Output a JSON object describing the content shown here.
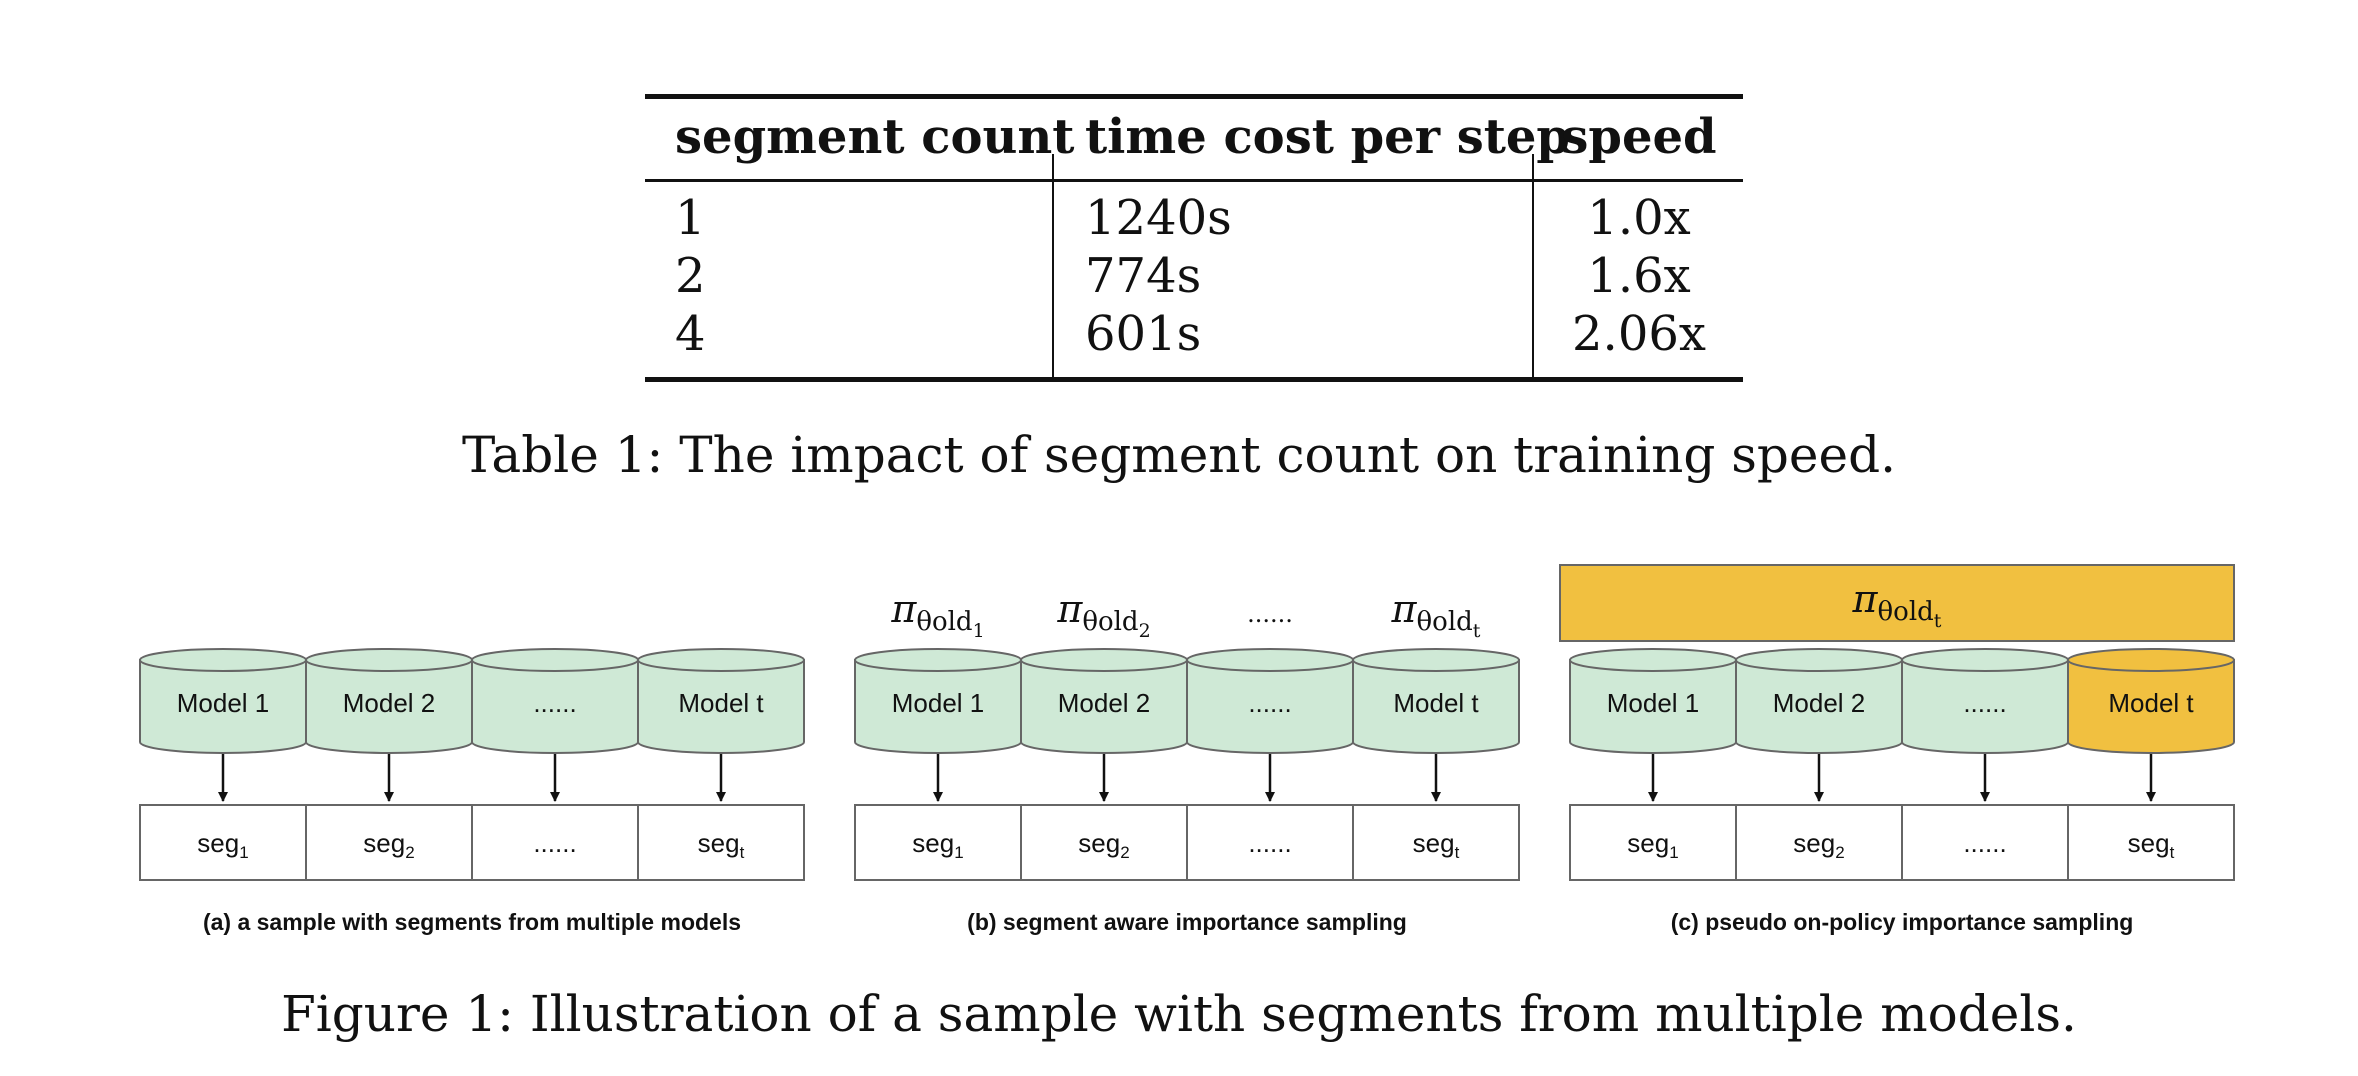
{
  "table": {
    "headers": [
      "segment count",
      "time cost per step",
      "speed"
    ],
    "rows": [
      [
        "1",
        "1240s",
        "1.0x"
      ],
      [
        "2",
        "774s",
        "1.6x"
      ],
      [
        "4",
        "601s",
        "2.06x"
      ]
    ],
    "caption": "Table 1: The impact of segment count on training speed."
  },
  "figure": {
    "caption": "Figure 1: Illustration of a sample with segments from multiple models.",
    "colors": {
      "model_fill": "#cfe9d6",
      "highlight": "#f1c040",
      "stroke": "#666666"
    },
    "panels": [
      {
        "caption": "(a)  a sample with segments from multiple models",
        "models": [
          "Model 1",
          "Model 2",
          "......",
          "Model t"
        ],
        "segments": [
          {
            "base": "seg",
            "sub": "1"
          },
          {
            "base": "seg",
            "sub": "2"
          },
          {
            "base": "......",
            "sub": ""
          },
          {
            "base": "seg",
            "sub": "t"
          }
        ]
      },
      {
        "caption": "(b)  segment aware importance sampling",
        "models": [
          "Model 1",
          "Model 2",
          "......",
          "Model t"
        ],
        "segments": [
          {
            "base": "seg",
            "sub": "1"
          },
          {
            "base": "seg",
            "sub": "2"
          },
          {
            "base": "......",
            "sub": ""
          },
          {
            "base": "seg",
            "sub": "t"
          }
        ],
        "policies": [
          {
            "symbol": "π",
            "sub": "θold",
            "subsub": "1"
          },
          {
            "symbol": "π",
            "sub": "θold",
            "subsub": "2"
          },
          {
            "symbol": "......",
            "sub": "",
            "subsub": ""
          },
          {
            "symbol": "π",
            "sub": "θold",
            "subsub": "t"
          }
        ]
      },
      {
        "caption": "(c)  pseudo on-policy importance sampling",
        "models": [
          "Model 1",
          "Model 2",
          "......",
          "Model t"
        ],
        "segments": [
          {
            "base": "seg",
            "sub": "1"
          },
          {
            "base": "seg",
            "sub": "2"
          },
          {
            "base": "......",
            "sub": ""
          },
          {
            "base": "seg",
            "sub": "t"
          }
        ],
        "banner_policy": {
          "symbol": "π",
          "sub": "θold",
          "subsub": "t"
        }
      }
    ]
  }
}
